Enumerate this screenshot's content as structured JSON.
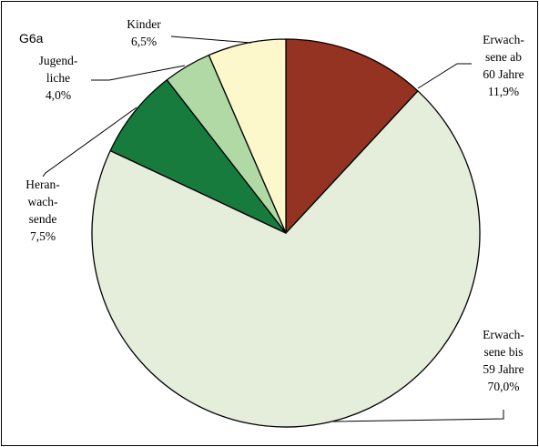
{
  "chart_data": {
    "type": "pie",
    "title": "G6a",
    "slices": [
      {
        "key": "senior",
        "label_lines": [
          "Erwach-",
          "sene ab",
          "60 Jahre"
        ],
        "value": 11.9,
        "value_label": "11,9%",
        "color": "#943322"
      },
      {
        "key": "adult",
        "label_lines": [
          "Erwach-",
          "sene bis",
          "59 Jahre"
        ],
        "value": 70.0,
        "value_label": "70,0%",
        "color": "#e4eedb"
      },
      {
        "key": "adolescent",
        "label_lines": [
          "Heran-",
          "wach-",
          "sende"
        ],
        "value": 7.5,
        "value_label": "7,5%",
        "color": "#177b3d"
      },
      {
        "key": "youth",
        "label_lines": [
          "Jugend-",
          "liche"
        ],
        "value": 4.0,
        "value_label": "4,0%",
        "color": "#b0d9a6"
      },
      {
        "key": "children",
        "label_lines": [
          "Kinder"
        ],
        "value": 6.5,
        "value_label": "6,5%",
        "color": "#fcf8cb"
      }
    ]
  }
}
